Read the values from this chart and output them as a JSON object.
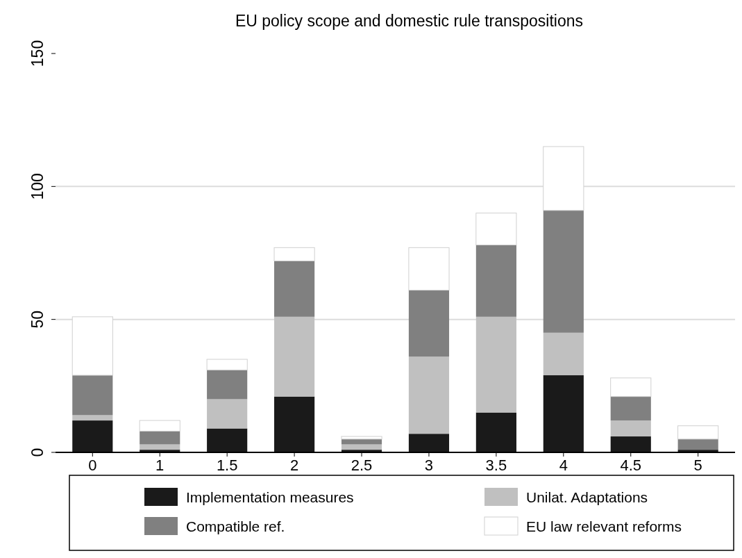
{
  "chart_data": {
    "type": "bar",
    "title": "EU policy scope and domestic rule transpositions",
    "stacked": true,
    "categories": [
      "0",
      "1",
      "1.5",
      "2",
      "2.5",
      "3",
      "3.5",
      "4",
      "4.5",
      "5"
    ],
    "series": [
      {
        "name": "Implementation measures",
        "color": "#1a1a1a",
        "values": [
          12,
          1,
          9,
          21,
          1,
          7,
          15,
          29,
          6,
          1
        ]
      },
      {
        "name": "Unilat. Adaptations",
        "color": "#c0c0c0",
        "values": [
          2,
          2,
          11,
          30,
          2,
          29,
          36,
          16,
          6,
          0
        ]
      },
      {
        "name": "Compatible ref.",
        "color": "#808080",
        "values": [
          15,
          5,
          11,
          21,
          2,
          25,
          27,
          46,
          9,
          4
        ]
      },
      {
        "name": "EU law relevant reforms",
        "color": "#ffffff",
        "values": [
          22,
          4,
          4,
          5,
          1,
          16,
          12,
          24,
          7,
          5
        ]
      }
    ],
    "ylim": [
      0,
      150
    ],
    "yticks": [
      0,
      50,
      100,
      150
    ],
    "grid": "y",
    "legend": "bottom"
  }
}
